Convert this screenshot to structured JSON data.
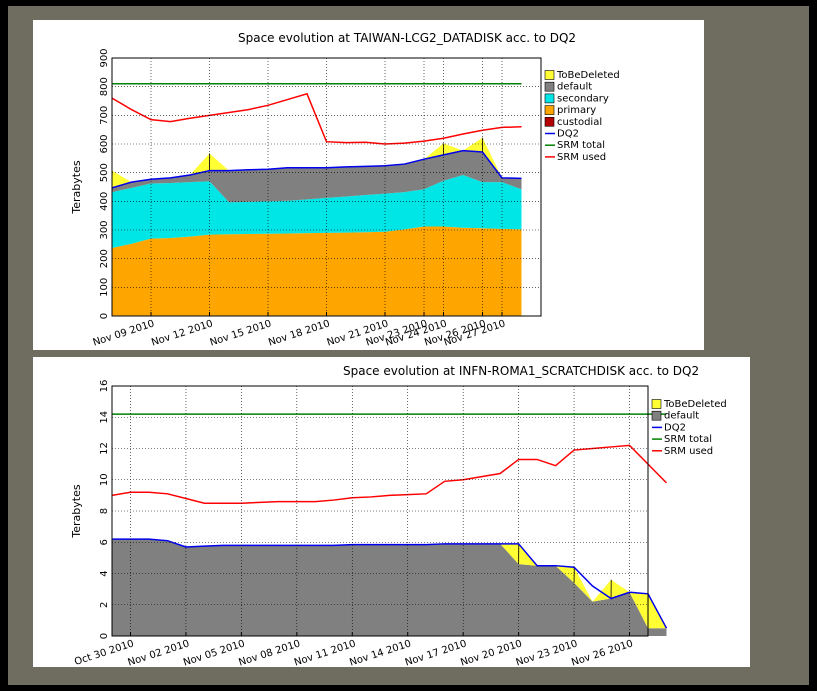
{
  "chart_data": [
    {
      "type": "area",
      "title": "Space evolution at TAIWAN-LCG2_DATADISK acc. to DQ2",
      "ylabel": "Terabytes",
      "x": [
        "2010-11-07",
        "2010-11-08",
        "2010-11-09",
        "2010-11-10",
        "2010-11-11",
        "2010-11-12",
        "2010-11-13",
        "2010-11-14",
        "2010-11-15",
        "2010-11-16",
        "2010-11-17",
        "2010-11-18",
        "2010-11-19",
        "2010-11-20",
        "2010-11-21",
        "2010-11-22",
        "2010-11-23",
        "2010-11-24",
        "2010-11-25",
        "2010-11-26",
        "2010-11-27",
        "2010-11-28"
      ],
      "xlim": [
        "2010-11-07",
        "2010-11-29"
      ],
      "xticks": [
        {
          "value": "2010-11-09",
          "label": "Nov 09 2010"
        },
        {
          "value": "2010-11-12",
          "label": "Nov 12 2010"
        },
        {
          "value": "2010-11-15",
          "label": "Nov 15 2010"
        },
        {
          "value": "2010-11-18",
          "label": "Nov 18 2010"
        },
        {
          "value": "2010-11-21",
          "label": "Nov 21 2010"
        },
        {
          "value": "2010-11-23",
          "label": "Nov 23 2010"
        },
        {
          "value": "2010-11-24",
          "label": "Nov 24 2010"
        },
        {
          "value": "2010-11-26",
          "label": "Nov 26 2010"
        },
        {
          "value": "2010-11-27",
          "label": "Nov 27 2010"
        }
      ],
      "ylim": [
        0,
        900
      ],
      "yticks": [
        0,
        100,
        200,
        300,
        400,
        500,
        600,
        700,
        800,
        900
      ],
      "grid": true,
      "series": [
        {
          "name": "ToBeDeleted",
          "color": "#ffff33",
          "style": "stacked",
          "values": [
            60,
            0,
            0,
            0,
            0,
            60,
            0,
            0,
            0,
            0,
            0,
            0,
            0,
            0,
            0,
            0,
            0,
            40,
            0,
            50,
            0,
            0
          ]
        },
        {
          "name": "default",
          "color": "#808080",
          "style": "stacked",
          "values": [
            15,
            20,
            15,
            18,
            25,
            37,
            110,
            112,
            112,
            115,
            110,
            105,
            103,
            100,
            97,
            98,
            105,
            90,
            85,
            105,
            15,
            38
          ]
        },
        {
          "name": "secondary",
          "color": "#00e5e5",
          "style": "stacked",
          "values": [
            195,
            195,
            192,
            192,
            190,
            186,
            112,
            112,
            113,
            114,
            118,
            122,
            126,
            130,
            133,
            130,
            130,
            160,
            184,
            161,
            163,
            140
          ]
        },
        {
          "name": "primary",
          "color": "#ffa500",
          "style": "stacked",
          "values": [
            235,
            250,
            268,
            270,
            275,
            282,
            283,
            284,
            285,
            286,
            287,
            288,
            289,
            290,
            292,
            300,
            310,
            310,
            306,
            304,
            302,
            300
          ]
        },
        {
          "name": "custodial",
          "color": "#b20000",
          "style": "stacked",
          "values": [
            2,
            2,
            2,
            2,
            2,
            2,
            2,
            2,
            2,
            2,
            2,
            2,
            2,
            2,
            2,
            2,
            2,
            2,
            2,
            2,
            2,
            2
          ]
        },
        {
          "name": "DQ2",
          "color": "#0000ee",
          "style": "line",
          "values": [
            447,
            467,
            477,
            482,
            492,
            507,
            507,
            510,
            512,
            517,
            517,
            517,
            520,
            522,
            524,
            530,
            547,
            562,
            577,
            572,
            482,
            480
          ]
        },
        {
          "name": "SRM total",
          "color": "#008000",
          "style": "line",
          "values": [
            810,
            810,
            810,
            810,
            810,
            810,
            810,
            810,
            810,
            810,
            810,
            810,
            810,
            810,
            810,
            810,
            810,
            810,
            810,
            810,
            810,
            810
          ]
        },
        {
          "name": "SRM used",
          "color": "#ff0000",
          "style": "line",
          "values": [
            760,
            720,
            685,
            678,
            690,
            700,
            710,
            720,
            735,
            755,
            775,
            608,
            605,
            606,
            600,
            603,
            610,
            620,
            635,
            648,
            658,
            660
          ]
        }
      ]
    },
    {
      "type": "area",
      "title": "Space evolution at INFN-ROMA1_SCRATCHDISK acc. to DQ2",
      "ylabel": "Terabytes",
      "x": [
        "2010-10-29",
        "2010-10-30",
        "2010-10-31",
        "2010-11-01",
        "2010-11-02",
        "2010-11-03",
        "2010-11-04",
        "2010-11-05",
        "2010-11-06",
        "2010-11-07",
        "2010-11-08",
        "2010-11-09",
        "2010-11-10",
        "2010-11-11",
        "2010-11-12",
        "2010-11-13",
        "2010-11-14",
        "2010-11-15",
        "2010-11-16",
        "2010-11-17",
        "2010-11-18",
        "2010-11-19",
        "2010-11-20",
        "2010-11-21",
        "2010-11-22",
        "2010-11-23",
        "2010-11-24",
        "2010-11-25",
        "2010-11-26",
        "2010-11-27",
        "2010-11-28"
      ],
      "xlim": [
        "2010-10-29",
        "2010-11-27"
      ],
      "xticks": [
        {
          "value": "2010-10-30",
          "label": "Oct 30 2010"
        },
        {
          "value": "2010-11-02",
          "label": "Nov 02 2010"
        },
        {
          "value": "2010-11-05",
          "label": "Nov 05 2010"
        },
        {
          "value": "2010-11-08",
          "label": "Nov 08 2010"
        },
        {
          "value": "2010-11-11",
          "label": "Nov 11 2010"
        },
        {
          "value": "2010-11-14",
          "label": "Nov 14 2010"
        },
        {
          "value": "2010-11-17",
          "label": "Nov 17 2010"
        },
        {
          "value": "2010-11-20",
          "label": "Nov 20 2010"
        },
        {
          "value": "2010-11-23",
          "label": "Nov 23 2010"
        },
        {
          "value": "2010-11-26",
          "label": "Nov 26 2010"
        }
      ],
      "ylim": [
        0,
        16
      ],
      "yticks": [
        0,
        2,
        4,
        6,
        8,
        10,
        12,
        14,
        16
      ],
      "grid": true,
      "series": [
        {
          "name": "ToBeDeleted",
          "color": "#ffff33",
          "style": "stacked",
          "values": [
            0,
            0,
            0,
            0,
            0,
            0,
            0,
            0,
            0,
            0,
            0,
            0,
            0,
            0,
            0,
            0,
            0,
            0,
            0,
            0,
            0,
            0,
            1.3,
            0,
            0,
            1.0,
            0,
            1.2,
            0,
            2.2,
            0
          ]
        },
        {
          "name": "default",
          "color": "#808080",
          "style": "stacked",
          "values": [
            6.2,
            6.2,
            6.2,
            6.1,
            5.7,
            5.75,
            5.8,
            5.8,
            5.8,
            5.8,
            5.8,
            5.8,
            5.8,
            5.85,
            5.85,
            5.85,
            5.85,
            5.85,
            5.9,
            5.9,
            5.9,
            5.9,
            4.6,
            4.5,
            4.5,
            3.4,
            2.2,
            2.4,
            2.8,
            0.5,
            0.5
          ]
        },
        {
          "name": "DQ2",
          "color": "#0000ee",
          "style": "line",
          "values": [
            6.2,
            6.2,
            6.2,
            6.1,
            5.7,
            5.75,
            5.8,
            5.8,
            5.8,
            5.8,
            5.8,
            5.8,
            5.8,
            5.85,
            5.85,
            5.85,
            5.85,
            5.85,
            5.9,
            5.9,
            5.9,
            5.9,
            5.9,
            4.5,
            4.5,
            4.4,
            3.2,
            2.4,
            2.8,
            2.7,
            0.5
          ]
        },
        {
          "name": "SRM total",
          "color": "#008000",
          "style": "line",
          "values": [
            14.2,
            14.2,
            14.2,
            14.2,
            14.2,
            14.2,
            14.2,
            14.2,
            14.2,
            14.2,
            14.2,
            14.2,
            14.2,
            14.2,
            14.2,
            14.2,
            14.2,
            14.2,
            14.2,
            14.2,
            14.2,
            14.2,
            14.2,
            14.2,
            14.2,
            14.2,
            14.2,
            14.2,
            14.2,
            14.2,
            14.2
          ]
        },
        {
          "name": "SRM used",
          "color": "#ff0000",
          "style": "line",
          "values": [
            9.0,
            9.2,
            9.2,
            9.1,
            8.8,
            8.5,
            8.5,
            8.5,
            8.55,
            8.6,
            8.6,
            8.6,
            8.7,
            8.85,
            8.9,
            9.0,
            9.05,
            9.1,
            9.9,
            10.0,
            10.2,
            10.4,
            11.3,
            11.3,
            10.9,
            11.9,
            12.0,
            12.1,
            12.2,
            11.0,
            9.8
          ]
        }
      ]
    }
  ]
}
